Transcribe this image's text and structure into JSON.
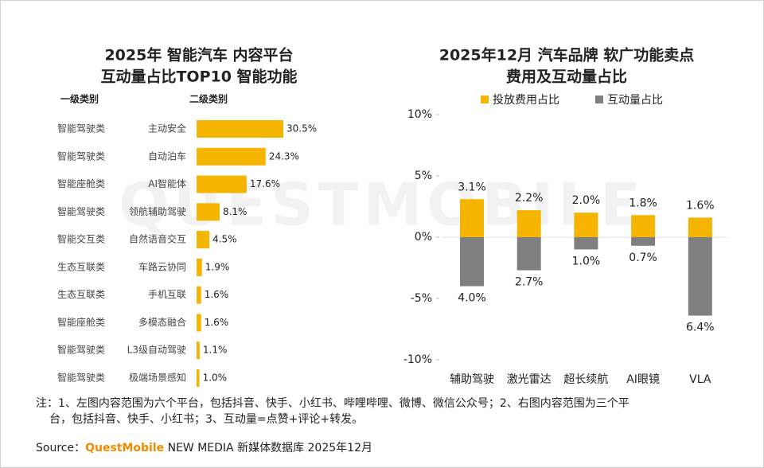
{
  "chart_data": [
    {
      "type": "bar",
      "orientation": "horizontal",
      "title": [
        "2025年 智能汽车 内容平台",
        "互动量占比TOP10 智能功能"
      ],
      "category_headers": [
        "一级类别",
        "二级类别"
      ],
      "groups": [
        "智能驾驶类",
        "智能驾驶类",
        "智能座舱类",
        "智能驾驶类",
        "智能交互类",
        "生态互联类",
        "生态互联类",
        "智能座舱类",
        "智能驾驶类",
        "智能驾驶类"
      ],
      "categories": [
        "主动安全",
        "自动泊车",
        "AI智能体",
        "领航辅助驾驶",
        "自然语音交互",
        "车路云协同",
        "手机互联",
        "多模态融合",
        "L3级自动驾驶",
        "极端场景感知"
      ],
      "values": [
        30.5,
        24.3,
        17.6,
        8.1,
        4.5,
        1.9,
        1.6,
        1.6,
        1.1,
        1.0
      ],
      "value_labels": [
        "30.5%",
        "24.3%",
        "17.6%",
        "8.1%",
        "4.5%",
        "1.9%",
        "1.6%",
        "1.6%",
        "1.1%",
        "1.0%"
      ],
      "color": "#f5b400"
    },
    {
      "type": "bar",
      "title": [
        "2025年12月 汽车品牌 软广功能卖点",
        "费用及互动量占比"
      ],
      "categories": [
        "辅助驾驶",
        "激光雷达",
        "超长续航",
        "AI眼镜",
        "VLA"
      ],
      "series": [
        {
          "name": "投放费用占比",
          "color": "#f5b400",
          "values": [
            3.1,
            2.2,
            2.0,
            1.8,
            1.6
          ],
          "value_labels": [
            "3.1%",
            "2.2%",
            "2.0%",
            "1.8%",
            "1.6%"
          ]
        },
        {
          "name": "互动量占比",
          "color": "#7f7f7f",
          "values": [
            -4.0,
            -2.7,
            -1.0,
            -0.7,
            -6.4
          ],
          "value_labels": [
            "4.0%",
            "2.7%",
            "1.0%",
            "0.7%",
            "6.4%"
          ]
        }
      ],
      "ylim": [
        -10,
        10
      ],
      "yticks": [
        {
          "value": 10,
          "label": "10%"
        },
        {
          "value": 5,
          "label": "5%"
        },
        {
          "value": 0,
          "label": "0%"
        },
        {
          "value": -5,
          "label": "-5%"
        },
        {
          "value": -10,
          "label": "-10%"
        }
      ],
      "legend": "top"
    }
  ],
  "watermark": "QUESTMOBILE",
  "footer": {
    "notes": [
      "注：1、左图内容范围为六个平台，包括抖音、快手、小红书、哔哩哔哩、微博、微信公众号；2、右图内容范围为三个平",
      "台，包括抖音、快手、小红书；3、互动量=点赞+评论+转发。"
    ],
    "source_label": "Source：",
    "source_brand": "QuestMobile",
    "source_rest": " NEW MEDIA 新媒体数据库 2025年12月"
  }
}
